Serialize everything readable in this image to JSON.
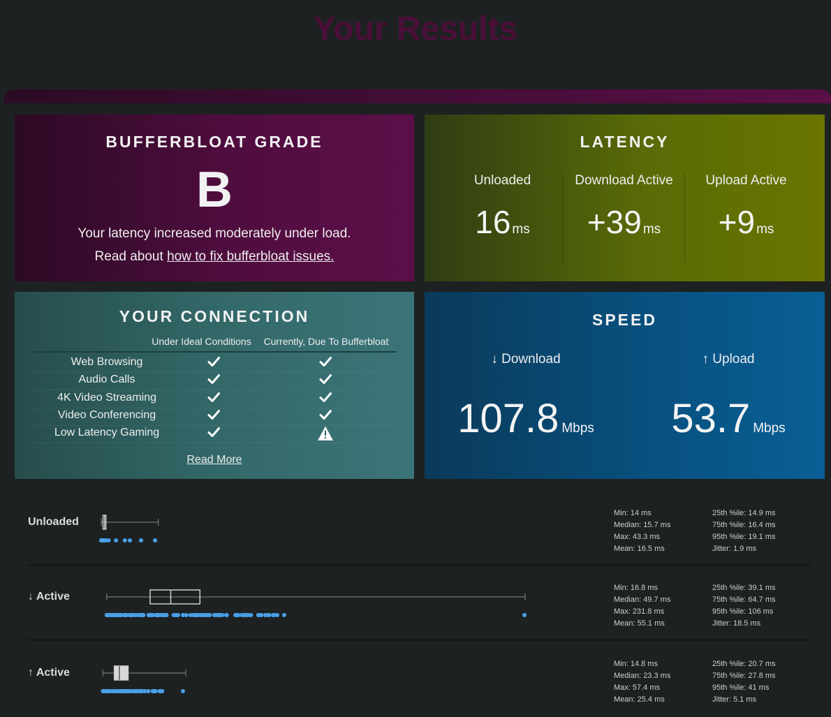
{
  "page": {
    "title": "Your Results"
  },
  "grade": {
    "heading": "BUFFERBLOAT GRADE",
    "letter": "B",
    "description": "Your latency increased moderately under load.",
    "read_prefix": "Read about ",
    "read_link": "how to fix bufferbloat issues."
  },
  "latency": {
    "heading": "LATENCY",
    "columns": [
      {
        "label": "Unloaded",
        "value": "16",
        "unit": "ms"
      },
      {
        "label": "Download Active",
        "value": "+39",
        "unit": "ms"
      },
      {
        "label": "Upload Active",
        "value": "+9",
        "unit": "ms"
      }
    ]
  },
  "connection": {
    "heading": "YOUR CONNECTION",
    "col_ideal": "Under Ideal Conditions",
    "col_current": "Currently, Due To Bufferbloat",
    "rows": [
      {
        "name": "Web Browsing",
        "ideal": "check",
        "current": "check"
      },
      {
        "name": "Audio Calls",
        "ideal": "check",
        "current": "check"
      },
      {
        "name": "4K Video Streaming",
        "ideal": "check",
        "current": "check"
      },
      {
        "name": "Video Conferencing",
        "ideal": "check",
        "current": "check"
      },
      {
        "name": "Low Latency Gaming",
        "ideal": "check",
        "current": "warning"
      }
    ],
    "read_more": "Read More"
  },
  "speed": {
    "heading": "SPEED",
    "download": {
      "label": "↓ Download",
      "value": "107.8",
      "unit": "Mbps"
    },
    "upload": {
      "label": "↑ Upload",
      "value": "53.7",
      "unit": "Mbps"
    }
  },
  "stats": [
    {
      "label": "Unloaded",
      "min": "Min: 14 ms",
      "median": "Median: 15.7 ms",
      "max": "Max: 43.3 ms",
      "mean": "Mean: 16.5 ms",
      "p25": "25th %ile: 14.9 ms",
      "p75": "75th %ile: 16.4 ms",
      "p95": "95th %ile: 19.1 ms",
      "jitter": "Jitter: 1.9 ms",
      "box": {
        "min": 14,
        "q1": 14.9,
        "median": 15.7,
        "q3": 16.4,
        "whisker_max": 43.3
      }
    },
    {
      "label": "↓ Active",
      "min": "Min: 16.8 ms",
      "median": "Median: 49.7 ms",
      "max": "Max: 231.8 ms",
      "mean": "Mean: 55.1 ms",
      "p25": "25th %ile: 39.1 ms",
      "p75": "75th %ile: 64.7 ms",
      "p95": "95th %ile: 106 ms",
      "jitter": "Jitter: 18.5 ms",
      "box": {
        "min": 16.8,
        "q1": 39.1,
        "median": 49.7,
        "q3": 64.7,
        "whisker_max": 231.8
      }
    },
    {
      "label": "↑ Active",
      "min": "Min: 14.8 ms",
      "median": "Median: 23.3 ms",
      "max": "Max: 57.4 ms",
      "mean": "Mean: 25.4 ms",
      "p25": "25th %ile: 20.7 ms",
      "p75": "75th %ile: 27.8 ms",
      "p95": "95th %ile: 41 ms",
      "jitter": "Jitter: 5.1 ms",
      "box": {
        "min": 14.8,
        "q1": 20.7,
        "median": 23.3,
        "q3": 27.8,
        "whisker_max": 57.4
      }
    }
  ],
  "colors": {
    "dot": "#4a9fe6",
    "box": "#cfcfcf",
    "title": "#4a0f38"
  }
}
